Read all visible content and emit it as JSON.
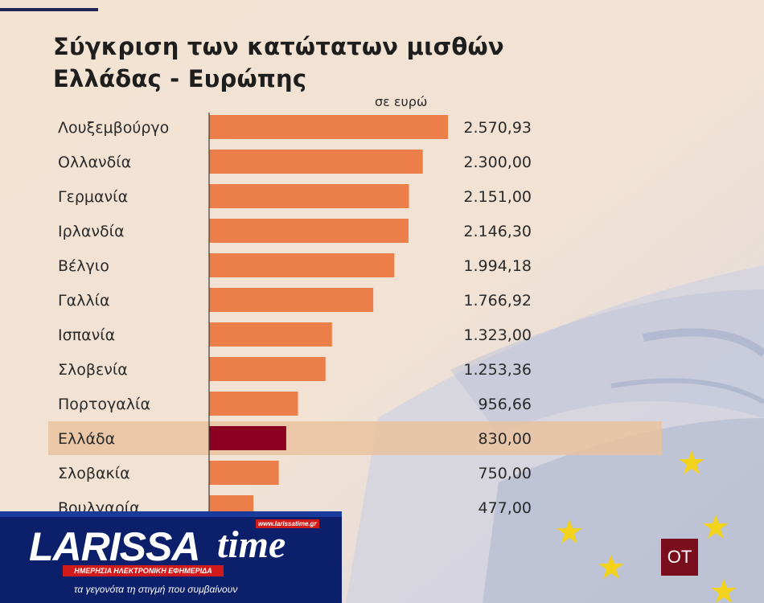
{
  "header": {
    "title_line1": "Σύγκριση των κατώτατων μισθών",
    "title_line2": "Ελλάδας - Ευρώπης"
  },
  "chart_data": {
    "type": "bar",
    "orientation": "horizontal",
    "unit_label": "σε ευρώ",
    "categories": [
      "Λουξεμβούργο",
      "Ολλανδία",
      "Γερμανία",
      "Ιρλανδία",
      "Βέλγιο",
      "Γαλλία",
      "Ισπανία",
      "Σλοβενία",
      "Πορτογαλία",
      "Ελλάδα",
      "Σλοβακία",
      "Βουλγαρία"
    ],
    "values": [
      2570.93,
      2300.0,
      2151.0,
      2146.3,
      1994.18,
      1766.92,
      1323.0,
      1253.36,
      956.66,
      830.0,
      750.0,
      477.0
    ],
    "value_labels": [
      "2.570,93",
      "2.300,00",
      "2.151,00",
      "2.146,30",
      "1.994,18",
      "1.766,92",
      "1.323,00",
      "1.253,36",
      "956,66",
      "830,00",
      "750,00",
      "477,00"
    ],
    "highlight": "Ελλάδα",
    "colors": {
      "bar": "#ec7f49",
      "highlight_bar": "#8b0020",
      "highlight_row": "#e9c29f",
      "axis": "#3a3a3a"
    }
  },
  "branding": {
    "logo_part1": "LARISSA",
    "logo_part2": "time",
    "url": "www.larissatime.gr",
    "tagline": "ΗΜΕΡΗΣΙΑ ΗΛΕΚΤΡΟΝΙΚΗ ΕΦΗΜΕΡΙΔΑ",
    "slogan": "τα γεγονότα τη στιγμή που συμβαίνουν",
    "badge": "ΟΤ"
  }
}
